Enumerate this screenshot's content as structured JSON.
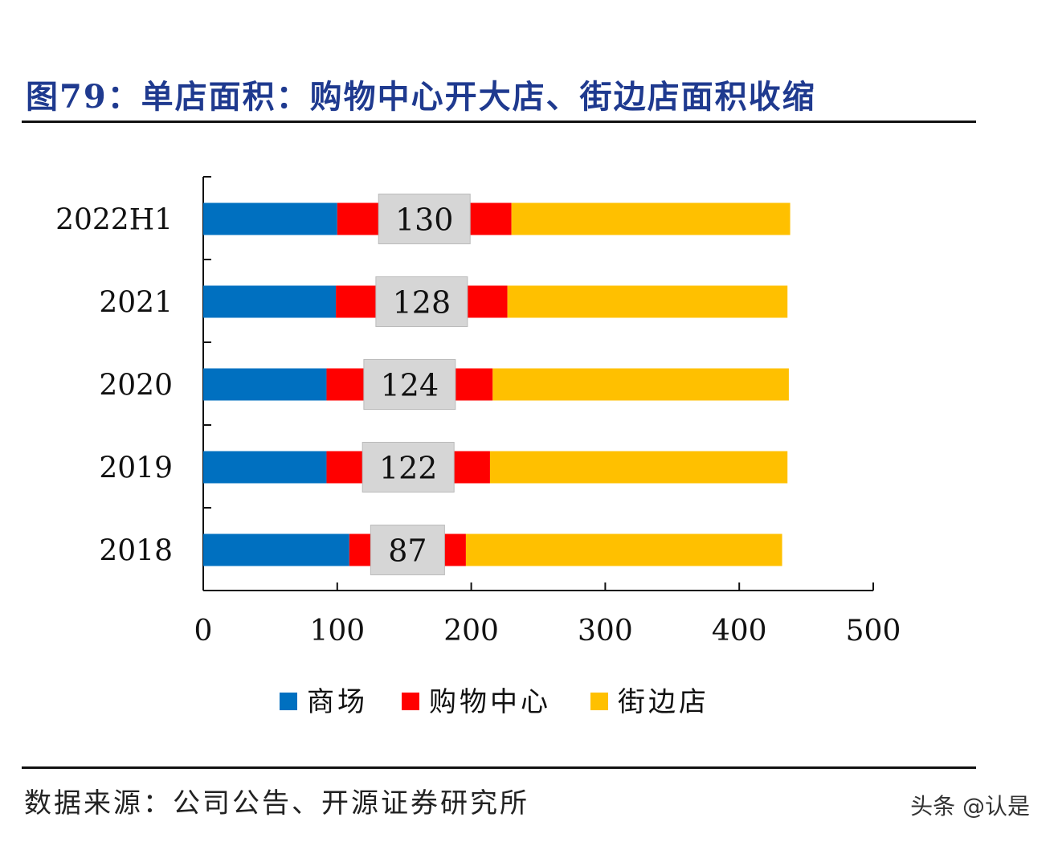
{
  "title": "图79：单店面积：购物中心开大店、街边店面积收缩",
  "source": "数据来源：公司公告、开源证券研究所",
  "watermark": "头条 @认是",
  "chart_data": {
    "type": "bar",
    "orientation": "horizontal",
    "stacked": true,
    "categories": [
      "2022H1",
      "2021",
      "2020",
      "2019",
      "2018"
    ],
    "series": [
      {
        "name": "商场",
        "color": "#0070c0",
        "values": [
          100,
          99,
          92,
          92,
          109
        ]
      },
      {
        "name": "购物中心",
        "color": "#ff0000",
        "values": [
          130,
          128,
          124,
          122,
          87
        ],
        "show_labels": true
      },
      {
        "name": "街边店",
        "color": "#ffc000",
        "values": [
          208,
          209,
          221,
          222,
          236
        ]
      }
    ],
    "xlim": [
      0,
      500
    ],
    "xticks": [
      "0",
      "100",
      "200",
      "300",
      "400",
      "500"
    ],
    "legend": "bottom",
    "grid": false
  }
}
